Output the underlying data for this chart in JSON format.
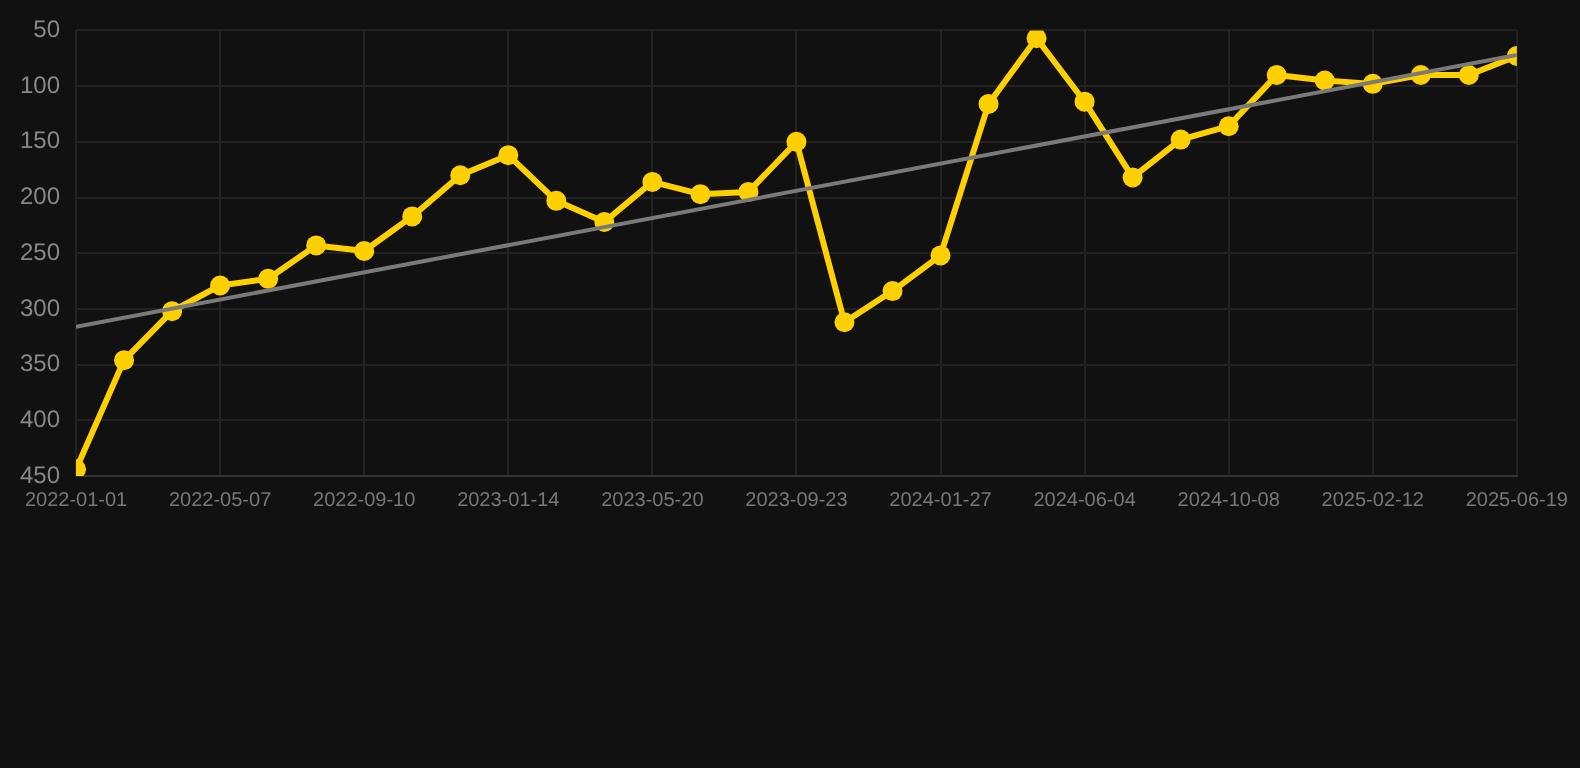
{
  "chart_data": {
    "type": "line",
    "categories": [
      "2022-01-01",
      null,
      null,
      "2022-05-07",
      null,
      null,
      "2022-09-10",
      null,
      null,
      "2023-01-14",
      null,
      null,
      "2023-05-20",
      null,
      null,
      "2023-09-23",
      null,
      null,
      "2024-01-27",
      null,
      null,
      "2024-06-04",
      null,
      null,
      "2024-10-08",
      null,
      null,
      "2025-02-12",
      null,
      null,
      "2025-06-19"
    ],
    "series": [
      {
        "color": "#ffd000",
        "marker": "circle",
        "values": [
          444,
          346,
          302,
          279,
          273,
          243,
          248,
          217,
          180,
          162,
          203,
          222,
          186,
          197,
          195,
          150,
          312,
          284,
          252,
          116,
          57,
          114,
          182,
          148,
          136,
          90,
          95,
          98,
          90,
          90,
          73
        ]
      },
      {
        "type": "line",
        "color": "#7a7a7a",
        "marker": "none",
        "values": [
          316,
          null,
          null,
          null,
          null,
          null,
          null,
          null,
          null,
          null,
          null,
          null,
          null,
          null,
          null,
          null,
          null,
          null,
          null,
          null,
          null,
          null,
          null,
          null,
          null,
          null,
          null,
          null,
          null,
          null,
          72
        ]
      }
    ],
    "ylim": [
      450,
      50
    ],
    "yticks": [
      50,
      100,
      150,
      200,
      250,
      300,
      350,
      400,
      450
    ],
    "grid": true,
    "legend": false
  }
}
